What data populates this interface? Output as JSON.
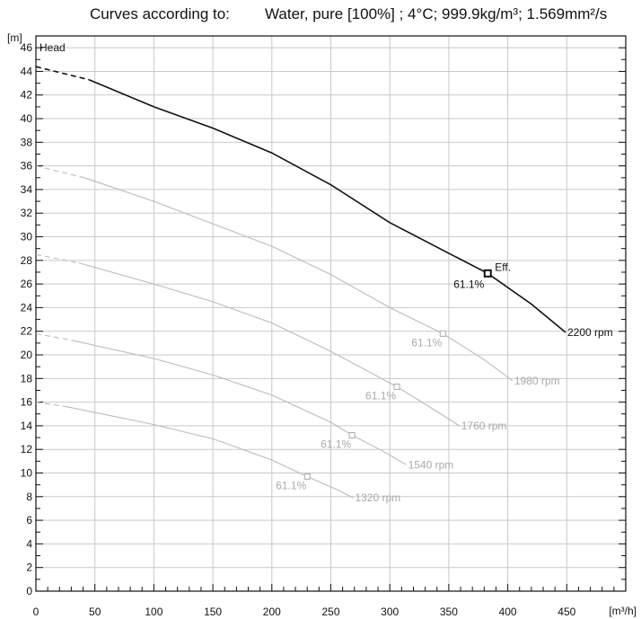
{
  "header": {
    "label": "Curves according to:",
    "value": "Water, pure [100%] ; 4°C; 999.9kg/m³; 1.569mm²/s"
  },
  "chart_data": {
    "type": "line",
    "y_unit": "[m]",
    "x_unit": "[m³/h]",
    "y_title": "Head",
    "xlim": [
      0,
      500
    ],
    "ylim": [
      0,
      47
    ],
    "x_ticks": [
      0,
      50,
      100,
      150,
      200,
      250,
      300,
      350,
      400,
      450
    ],
    "y_ticks": [
      0,
      2,
      4,
      6,
      8,
      10,
      12,
      14,
      16,
      18,
      20,
      22,
      24,
      26,
      28,
      30,
      32,
      34,
      36,
      38,
      40,
      42,
      44,
      46
    ],
    "grid": true,
    "series": [
      {
        "name": "2200 rpm",
        "color": "#111111",
        "dashed_points": [
          [
            0,
            44.4
          ],
          [
            45,
            43.3
          ]
        ],
        "points": [
          [
            45,
            43.3
          ],
          [
            100,
            41.0
          ],
          [
            150,
            39.2
          ],
          [
            200,
            37.1
          ],
          [
            250,
            34.4
          ],
          [
            300,
            31.2
          ],
          [
            350,
            28.6
          ],
          [
            383,
            26.9
          ],
          [
            420,
            24.3
          ],
          [
            449,
            21.9
          ]
        ],
        "marker": {
          "x": 383,
          "y": 26.9,
          "label": "61.1%",
          "annotation": "Eff."
        }
      },
      {
        "name": "1980 rpm",
        "color": "#bbbbbb",
        "dashed_points": [
          [
            0,
            36.0
          ],
          [
            41,
            35.0
          ]
        ],
        "points": [
          [
            41,
            35.0
          ],
          [
            100,
            33.0
          ],
          [
            150,
            31.1
          ],
          [
            200,
            29.2
          ],
          [
            250,
            26.8
          ],
          [
            300,
            24.0
          ],
          [
            345,
            21.8
          ],
          [
            380,
            19.6
          ],
          [
            404,
            17.8
          ]
        ],
        "marker": {
          "x": 345,
          "y": 21.8,
          "label": "61.1%"
        }
      },
      {
        "name": "1760 rpm",
        "color": "#bbbbbb",
        "dashed_points": [
          [
            0,
            28.5
          ],
          [
            36,
            27.8
          ]
        ],
        "points": [
          [
            36,
            27.8
          ],
          [
            100,
            26.0
          ],
          [
            150,
            24.5
          ],
          [
            200,
            22.7
          ],
          [
            250,
            20.3
          ],
          [
            306,
            17.3
          ],
          [
            340,
            15.2
          ],
          [
            359,
            14.0
          ]
        ],
        "marker": {
          "x": 306,
          "y": 17.3,
          "label": "61.1%"
        }
      },
      {
        "name": "1540 rpm",
        "color": "#bbbbbb",
        "dashed_points": [
          [
            0,
            21.8
          ],
          [
            32,
            21.2
          ]
        ],
        "points": [
          [
            32,
            21.2
          ],
          [
            100,
            19.7
          ],
          [
            150,
            18.3
          ],
          [
            200,
            16.6
          ],
          [
            250,
            14.3
          ],
          [
            268,
            13.2
          ],
          [
            295,
            11.8
          ],
          [
            314,
            10.7
          ]
        ],
        "marker": {
          "x": 268,
          "y": 13.2,
          "label": "61.1%"
        }
      },
      {
        "name": "1320 rpm",
        "color": "#bbbbbb",
        "dashed_points": [
          [
            0,
            16.0
          ],
          [
            27,
            15.6
          ]
        ],
        "points": [
          [
            27,
            15.6
          ],
          [
            100,
            14.1
          ],
          [
            150,
            12.9
          ],
          [
            200,
            11.1
          ],
          [
            230,
            9.7
          ],
          [
            255,
            8.6
          ],
          [
            269,
            7.9
          ]
        ],
        "marker": {
          "x": 230,
          "y": 9.7,
          "label": "61.1%"
        }
      }
    ]
  }
}
